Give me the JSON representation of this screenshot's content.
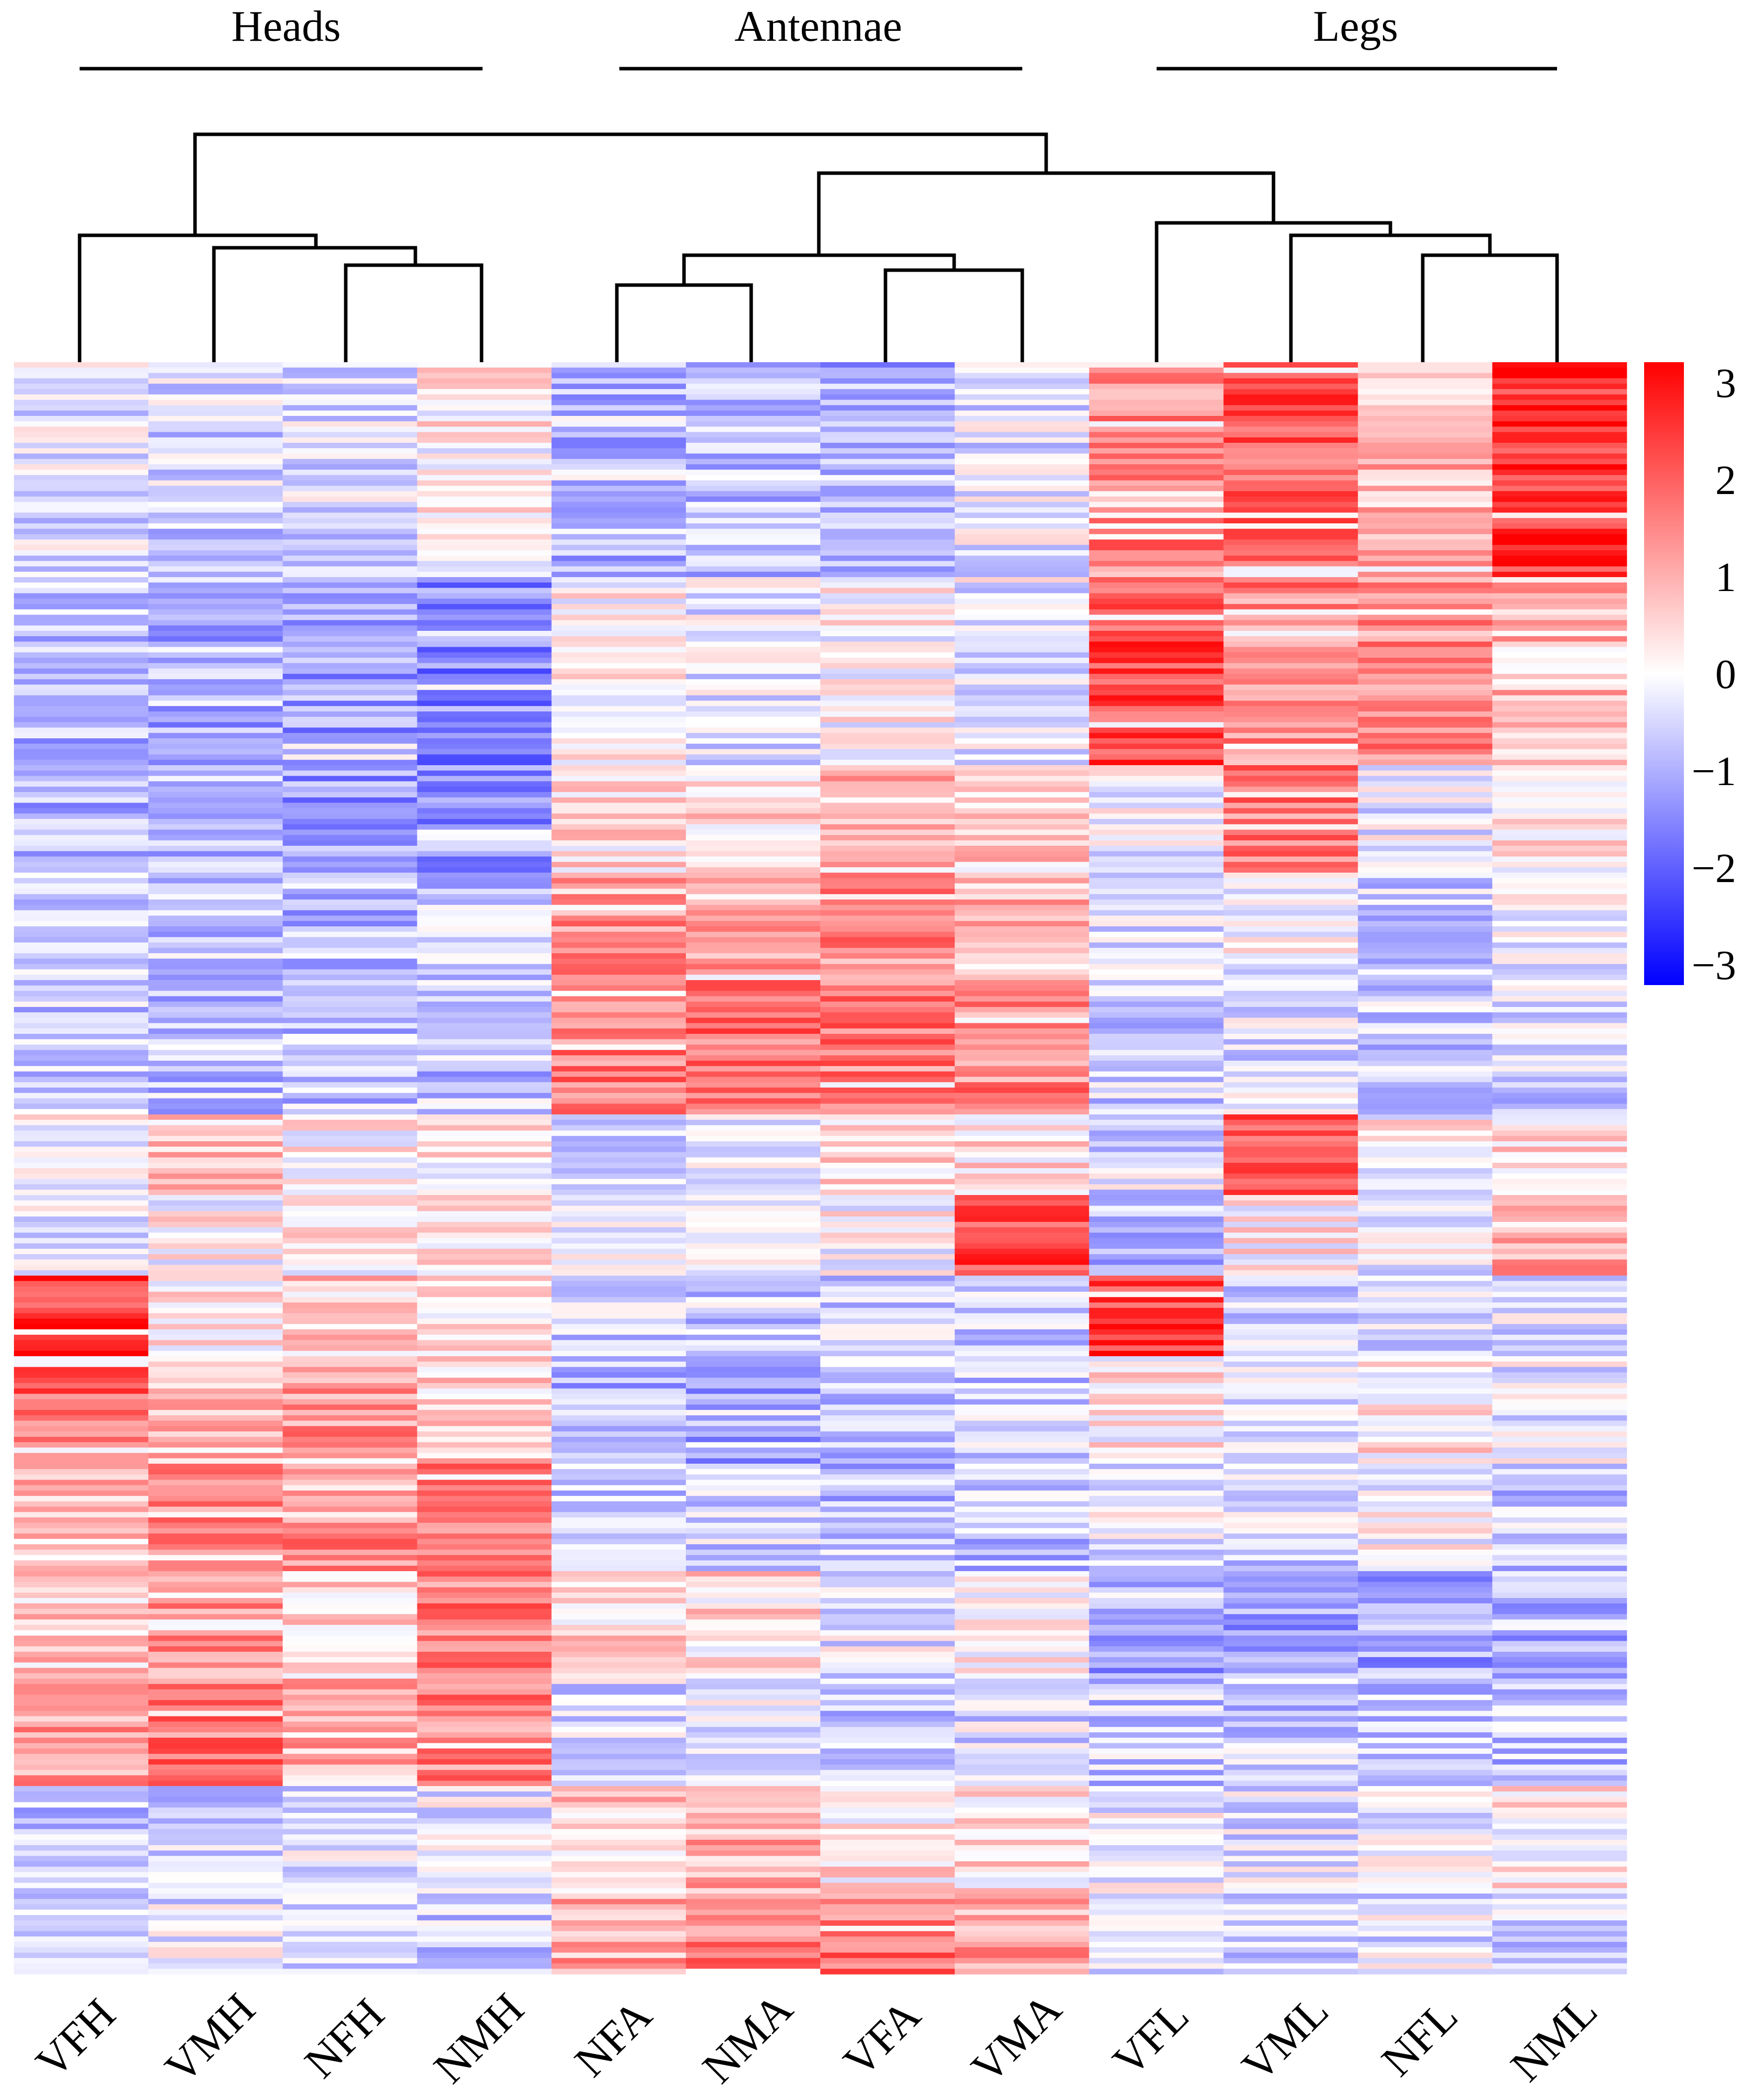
{
  "chart_data": {
    "type": "heatmap",
    "title": "",
    "groups": [
      {
        "label": "Heads",
        "columns": [
          "VFH",
          "VMH",
          "NFH",
          "NMH"
        ]
      },
      {
        "label": "Antennae",
        "columns": [
          "NFA",
          "NMA",
          "VFA",
          "VMA"
        ]
      },
      {
        "label": "Legs",
        "columns": [
          "VFL",
          "VML",
          "NFL",
          "NML"
        ]
      }
    ],
    "columns": [
      "VFH",
      "VMH",
      "NFH",
      "NMH",
      "NFA",
      "NMA",
      "VFA",
      "VMA",
      "VFL",
      "VML",
      "NFL",
      "NML"
    ],
    "color_scale": {
      "min": -3,
      "max": 3,
      "low_color": "#0000ff",
      "mid_color": "#ffffff",
      "high_color": "#ff0000",
      "ticks": [
        3,
        2,
        1,
        0,
        -1,
        -2,
        -3
      ],
      "tick_labels": [
        "3",
        "2",
        "1",
        "0",
        "−1",
        "−2",
        "−3"
      ]
    },
    "row_count": 300,
    "column_dendrogram": {
      "merges": [
        {
          "left": "NFH",
          "right": "NMH",
          "height": 0.55
        },
        {
          "left": "VMH",
          "right": "NFH+NMH",
          "height": 0.62
        },
        {
          "left": "VFH",
          "right": "VMH+NFH+NMH",
          "height": 0.72
        },
        {
          "left": "NFA",
          "right": "NMA",
          "height": 0.42
        },
        {
          "left": "VFA",
          "right": "VMA",
          "height": 0.52
        },
        {
          "left": "NFA+NMA",
          "right": "VFA+VMA",
          "height": 0.6
        },
        {
          "left": "NFL",
          "right": "NML",
          "height": 0.62
        },
        {
          "left": "VML",
          "right": "NFL+NML",
          "height": 0.72
        },
        {
          "left": "VFL",
          "right": "VML+NFL+NML",
          "height": 0.8
        },
        {
          "left": "Antennae",
          "right": "Legs",
          "height": 1.08
        },
        {
          "left": "Heads",
          "right": "Antennae+Legs",
          "height": 1.3
        }
      ]
    },
    "row_blocks": [
      {
        "rows": [
          0,
          40
        ],
        "values": [
          -0.3,
          -0.5,
          -0.4,
          0.2,
          -0.8,
          -0.7,
          -0.9,
          -0.3,
          1.4,
          2.0,
          0.8,
          2.5
        ]
      },
      {
        "rows": [
          40,
          75
        ],
        "values": [
          -0.8,
          -1.0,
          -1.1,
          -1.4,
          0.2,
          -0.3,
          0.1,
          -0.2,
          2.1,
          1.4,
          1.3,
          0.8
        ]
      },
      {
        "rows": [
          75,
          95
        ],
        "values": [
          -0.9,
          -0.8,
          -1.2,
          -1.2,
          0.4,
          0.5,
          0.9,
          0.5,
          -0.2,
          1.5,
          -0.2,
          0.2
        ]
      },
      {
        "rows": [
          95,
          115
        ],
        "values": [
          -0.6,
          -0.6,
          -0.8,
          -0.6,
          1.2,
          1.3,
          1.3,
          0.8,
          -0.4,
          -0.1,
          -0.6,
          -0.1
        ]
      },
      {
        "rows": [
          115,
          140
        ],
        "values": [
          -0.6,
          -0.7,
          -0.7,
          -0.7,
          1.5,
          1.7,
          1.5,
          1.4,
          -0.5,
          -0.4,
          -0.6,
          -0.5
        ]
      },
      {
        "rows": [
          140,
          155
        ],
        "values": [
          -0.1,
          0.6,
          0.2,
          0.3,
          -0.4,
          -0.3,
          0.4,
          0.3,
          -0.4,
          1.9,
          0.1,
          0.4
        ]
      },
      {
        "rows": [
          155,
          170
        ],
        "values": [
          -0.3,
          0.1,
          0.2,
          0.3,
          -0.2,
          -0.4,
          0.1,
          2.1,
          -0.7,
          0.2,
          -0.1,
          1.2
        ]
      },
      {
        "rows": [
          170,
          185
        ],
        "values": [
          2.4,
          0.3,
          0.6,
          0.2,
          -0.6,
          -0.7,
          -0.6,
          -0.5,
          2.3,
          -0.4,
          -0.3,
          -0.4
        ]
      },
      {
        "rows": [
          185,
          205
        ],
        "values": [
          1.8,
          0.7,
          1.3,
          0.5,
          -0.9,
          -1.0,
          -0.7,
          -0.6,
          0.2,
          -0.5,
          0.3,
          -0.2
        ]
      },
      {
        "rows": [
          205,
          225
        ],
        "values": [
          0.8,
          1.3,
          1.4,
          1.5,
          -0.6,
          -0.5,
          -0.8,
          -0.7,
          -0.2,
          -0.5,
          -0.1,
          -0.6
        ]
      },
      {
        "rows": [
          225,
          245
        ],
        "values": [
          0.6,
          1.3,
          0.5,
          1.5,
          0.5,
          0.4,
          -0.3,
          0.1,
          -1.1,
          -1.0,
          -1.0,
          -0.9
        ]
      },
      {
        "rows": [
          245,
          265
        ],
        "values": [
          1.1,
          1.6,
          0.9,
          1.4,
          -0.4,
          -0.3,
          -0.6,
          -0.4,
          -0.6,
          -0.6,
          -0.6,
          -0.7
        ]
      },
      {
        "rows": [
          265,
          285
        ],
        "values": [
          -0.8,
          -0.5,
          -0.4,
          -0.2,
          0.7,
          0.9,
          0.3,
          0.4,
          -0.2,
          -0.3,
          -0.2,
          0.2
        ]
      },
      {
        "rows": [
          285,
          300
        ],
        "values": [
          -0.6,
          -0.3,
          -0.5,
          -0.5,
          1.0,
          1.5,
          1.6,
          1.1,
          -0.3,
          -0.4,
          -0.3,
          -0.5
        ]
      }
    ]
  }
}
